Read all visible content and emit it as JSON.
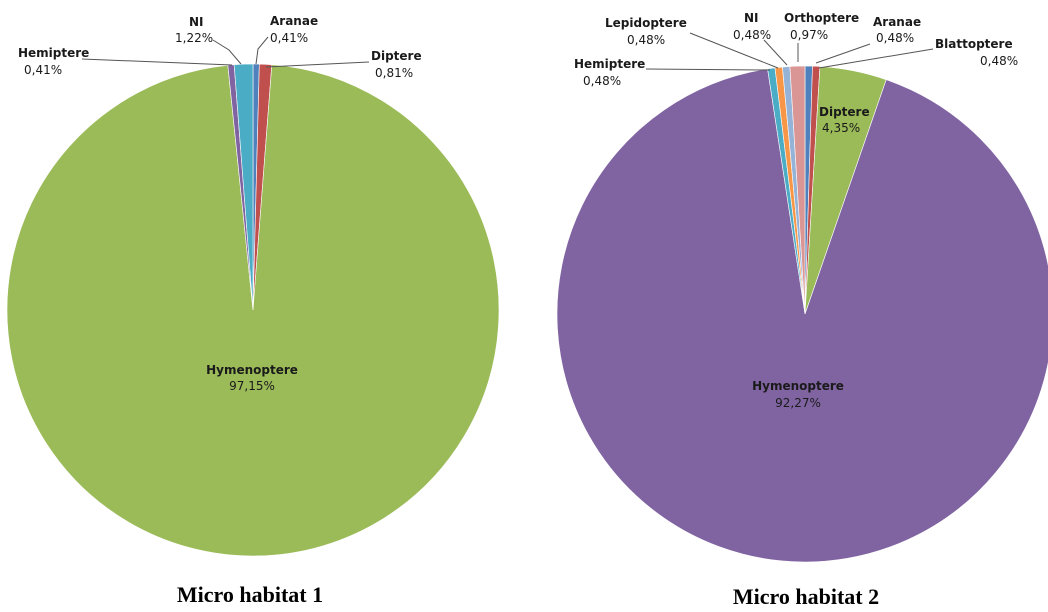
{
  "chart_data": [
    {
      "type": "pie",
      "title": "Micro habitat 1",
      "slices": [
        {
          "name": "Aranae",
          "value": 0.41,
          "label": "0,41%",
          "color": "#4f81bd"
        },
        {
          "name": "Diptere",
          "value": 0.81,
          "label": "0,81%",
          "color": "#c0504d"
        },
        {
          "name": "Hymenoptere",
          "value": 97.15,
          "label": "97,15%",
          "color": "#9bbb59"
        },
        {
          "name": "Hemiptere",
          "value": 0.41,
          "label": "0,41%",
          "color": "#8064a2"
        },
        {
          "name": "NI",
          "value": 1.22,
          "label": "1,22%",
          "color": "#4bacc6"
        }
      ]
    },
    {
      "type": "pie",
      "title": "Micro habitat 2",
      "slices": [
        {
          "name": "Aranae",
          "value": 0.48,
          "label": "0,48%",
          "color": "#4f81bd"
        },
        {
          "name": "Blattoptere",
          "value": 0.48,
          "label": "0,48%",
          "color": "#c0504d"
        },
        {
          "name": "Diptere",
          "value": 4.35,
          "label": "4,35%",
          "color": "#9bbb59"
        },
        {
          "name": "Hymenoptere",
          "value": 92.27,
          "label": "92,27%",
          "color": "#8064a2"
        },
        {
          "name": "Hemiptere",
          "value": 0.48,
          "label": "0,48%",
          "color": "#4bacc6"
        },
        {
          "name": "Lepidoptere",
          "value": 0.48,
          "label": "0,48%",
          "color": "#f79646"
        },
        {
          "name": "NI",
          "value": 0.48,
          "label": "0,48%",
          "color": "#95b3d7"
        },
        {
          "name": "Orthoptere",
          "value": 0.97,
          "label": "0,97%",
          "color": "#d99694"
        }
      ]
    }
  ]
}
